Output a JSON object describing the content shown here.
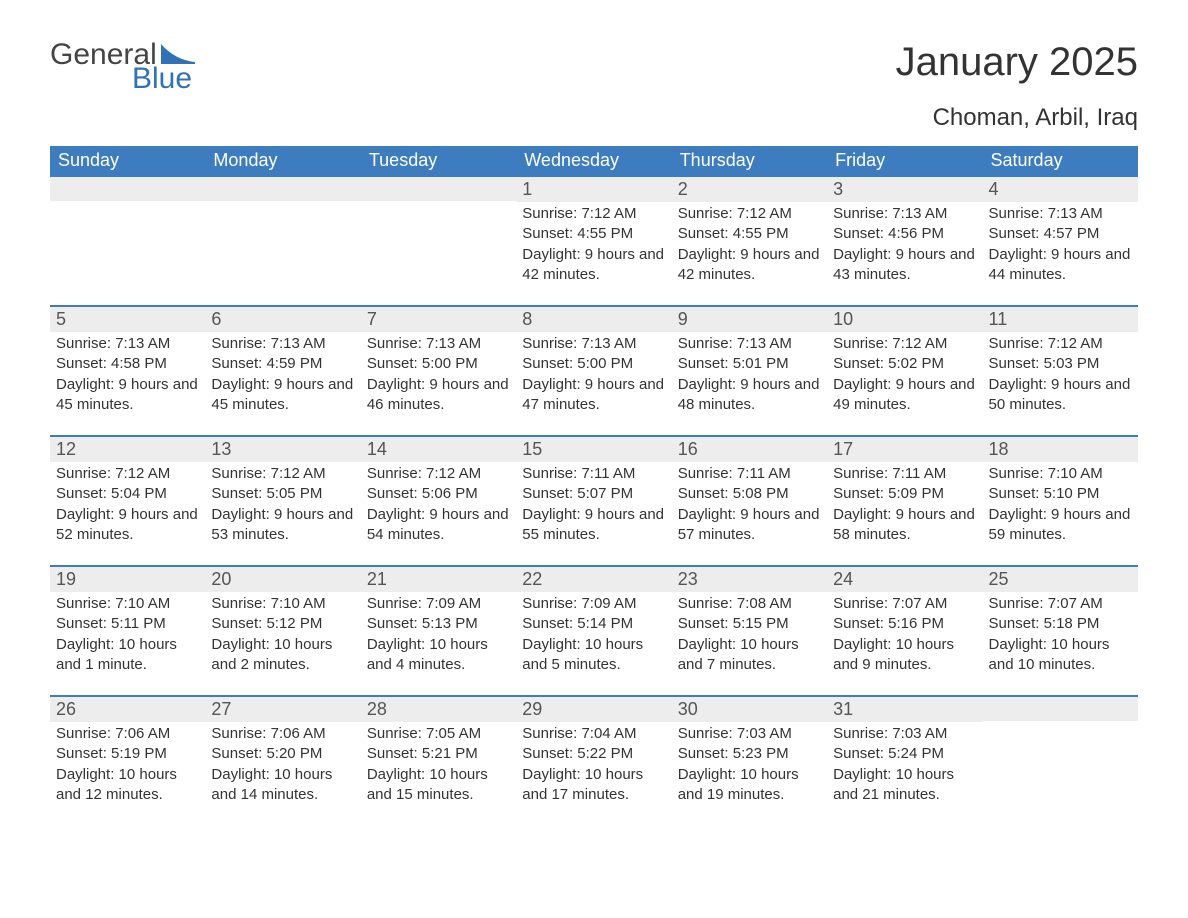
{
  "logo": {
    "word1": "General",
    "word2": "Blue",
    "sail_color": "#2f72b5"
  },
  "title": "January 2025",
  "location": "Choman, Arbil, Iraq",
  "colors": {
    "header_bg": "#3d7cbf",
    "header_text": "#ffffff",
    "daynum_bg": "#ededed",
    "daynum_text": "#555555",
    "body_text": "#333333",
    "row_divider": "#3d7cbf",
    "page_bg": "#ffffff"
  },
  "typography": {
    "title_fontsize": 40,
    "location_fontsize": 24,
    "header_fontsize": 18,
    "daynum_fontsize": 18,
    "body_fontsize": 15
  },
  "layout": {
    "columns": 7,
    "rows": 5
  },
  "weekdays": [
    "Sunday",
    "Monday",
    "Tuesday",
    "Wednesday",
    "Thursday",
    "Friday",
    "Saturday"
  ],
  "days": [
    null,
    null,
    null,
    {
      "n": 1,
      "sunrise": "7:12 AM",
      "sunset": "4:55 PM",
      "daylight": "9 hours and 42 minutes."
    },
    {
      "n": 2,
      "sunrise": "7:12 AM",
      "sunset": "4:55 PM",
      "daylight": "9 hours and 42 minutes."
    },
    {
      "n": 3,
      "sunrise": "7:13 AM",
      "sunset": "4:56 PM",
      "daylight": "9 hours and 43 minutes."
    },
    {
      "n": 4,
      "sunrise": "7:13 AM",
      "sunset": "4:57 PM",
      "daylight": "9 hours and 44 minutes."
    },
    {
      "n": 5,
      "sunrise": "7:13 AM",
      "sunset": "4:58 PM",
      "daylight": "9 hours and 45 minutes."
    },
    {
      "n": 6,
      "sunrise": "7:13 AM",
      "sunset": "4:59 PM",
      "daylight": "9 hours and 45 minutes."
    },
    {
      "n": 7,
      "sunrise": "7:13 AM",
      "sunset": "5:00 PM",
      "daylight": "9 hours and 46 minutes."
    },
    {
      "n": 8,
      "sunrise": "7:13 AM",
      "sunset": "5:00 PM",
      "daylight": "9 hours and 47 minutes."
    },
    {
      "n": 9,
      "sunrise": "7:13 AM",
      "sunset": "5:01 PM",
      "daylight": "9 hours and 48 minutes."
    },
    {
      "n": 10,
      "sunrise": "7:12 AM",
      "sunset": "5:02 PM",
      "daylight": "9 hours and 49 minutes."
    },
    {
      "n": 11,
      "sunrise": "7:12 AM",
      "sunset": "5:03 PM",
      "daylight": "9 hours and 50 minutes."
    },
    {
      "n": 12,
      "sunrise": "7:12 AM",
      "sunset": "5:04 PM",
      "daylight": "9 hours and 52 minutes."
    },
    {
      "n": 13,
      "sunrise": "7:12 AM",
      "sunset": "5:05 PM",
      "daylight": "9 hours and 53 minutes."
    },
    {
      "n": 14,
      "sunrise": "7:12 AM",
      "sunset": "5:06 PM",
      "daylight": "9 hours and 54 minutes."
    },
    {
      "n": 15,
      "sunrise": "7:11 AM",
      "sunset": "5:07 PM",
      "daylight": "9 hours and 55 minutes."
    },
    {
      "n": 16,
      "sunrise": "7:11 AM",
      "sunset": "5:08 PM",
      "daylight": "9 hours and 57 minutes."
    },
    {
      "n": 17,
      "sunrise": "7:11 AM",
      "sunset": "5:09 PM",
      "daylight": "9 hours and 58 minutes."
    },
    {
      "n": 18,
      "sunrise": "7:10 AM",
      "sunset": "5:10 PM",
      "daylight": "9 hours and 59 minutes."
    },
    {
      "n": 19,
      "sunrise": "7:10 AM",
      "sunset": "5:11 PM",
      "daylight": "10 hours and 1 minute."
    },
    {
      "n": 20,
      "sunrise": "7:10 AM",
      "sunset": "5:12 PM",
      "daylight": "10 hours and 2 minutes."
    },
    {
      "n": 21,
      "sunrise": "7:09 AM",
      "sunset": "5:13 PM",
      "daylight": "10 hours and 4 minutes."
    },
    {
      "n": 22,
      "sunrise": "7:09 AM",
      "sunset": "5:14 PM",
      "daylight": "10 hours and 5 minutes."
    },
    {
      "n": 23,
      "sunrise": "7:08 AM",
      "sunset": "5:15 PM",
      "daylight": "10 hours and 7 minutes."
    },
    {
      "n": 24,
      "sunrise": "7:07 AM",
      "sunset": "5:16 PM",
      "daylight": "10 hours and 9 minutes."
    },
    {
      "n": 25,
      "sunrise": "7:07 AM",
      "sunset": "5:18 PM",
      "daylight": "10 hours and 10 minutes."
    },
    {
      "n": 26,
      "sunrise": "7:06 AM",
      "sunset": "5:19 PM",
      "daylight": "10 hours and 12 minutes."
    },
    {
      "n": 27,
      "sunrise": "7:06 AM",
      "sunset": "5:20 PM",
      "daylight": "10 hours and 14 minutes."
    },
    {
      "n": 28,
      "sunrise": "7:05 AM",
      "sunset": "5:21 PM",
      "daylight": "10 hours and 15 minutes."
    },
    {
      "n": 29,
      "sunrise": "7:04 AM",
      "sunset": "5:22 PM",
      "daylight": "10 hours and 17 minutes."
    },
    {
      "n": 30,
      "sunrise": "7:03 AM",
      "sunset": "5:23 PM",
      "daylight": "10 hours and 19 minutes."
    },
    {
      "n": 31,
      "sunrise": "7:03 AM",
      "sunset": "5:24 PM",
      "daylight": "10 hours and 21 minutes."
    },
    null
  ],
  "labels": {
    "sunrise": "Sunrise: ",
    "sunset": "Sunset: ",
    "daylight": "Daylight: "
  }
}
